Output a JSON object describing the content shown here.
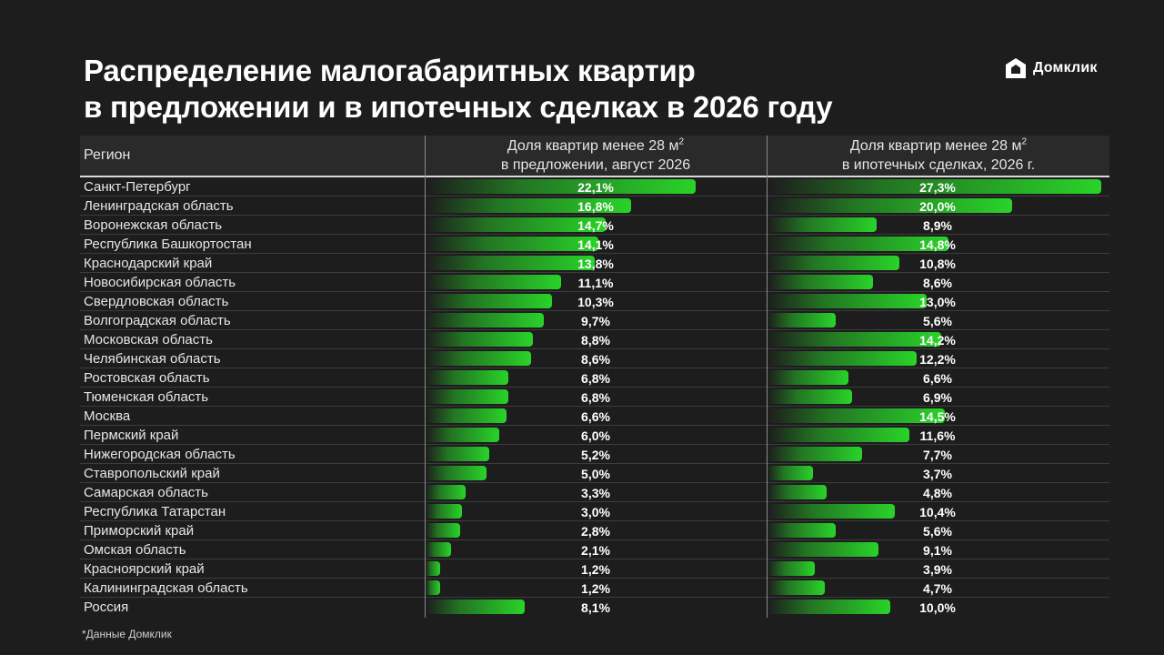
{
  "header": {
    "title_line1": "Распределение малогабаритных квартир",
    "title_line2": "в предложении и в ипотечных сделках в 2026 году"
  },
  "brand": {
    "name": "Домклик",
    "icon": "domclick-logo-icon",
    "accent": "#29d329"
  },
  "table": {
    "col_region": "Регион",
    "col1_line1": "Доля квартир менее 28 м",
    "col1_sup": "2",
    "col1_line2": "в предложении, август 2026",
    "col2_line1": "Доля квартир менее 28 м",
    "col2_sup": "2",
    "col2_line2": "в ипотечных сделках, 2026 г."
  },
  "chart_data": {
    "type": "bar",
    "categories": [
      "Санкт-Петербург",
      "Ленинградская область",
      "Воронежская область",
      "Республика Башкортостан",
      "Краснодарский край",
      "Новосибирская область",
      "Свердловская область",
      "Волгоградская область",
      "Московская область",
      "Челябинская область",
      "Ростовская область",
      "Тюменская область",
      "Москва",
      "Пермский край",
      "Нижегородская область",
      "Ставропольский край",
      "Самарская область",
      "Республика Татарстан",
      "Приморский край",
      "Омская область",
      "Красноярский край",
      "Калининградская область",
      "Россия"
    ],
    "series": [
      {
        "values": [
          22.1,
          16.8,
          14.7,
          14.1,
          13.8,
          11.1,
          10.3,
          9.7,
          8.8,
          8.6,
          6.8,
          6.8,
          6.6,
          6.0,
          5.2,
          5.0,
          3.3,
          3.0,
          2.8,
          2.1,
          1.2,
          1.2,
          8.1
        ],
        "labels": [
          "22,1%",
          "16,8%",
          "14,7%",
          "14,1%",
          "13,8%",
          "11,1%",
          "10,3%",
          "9,7%",
          "8,8%",
          "8,6%",
          "6,8%",
          "6,8%",
          "6,6%",
          "6,0%",
          "5,2%",
          "5,0%",
          "3,3%",
          "3,0%",
          "2,8%",
          "2,1%",
          "1,2%",
          "1,2%",
          "8,1%"
        ]
      },
      {
        "values": [
          27.3,
          20.0,
          8.9,
          14.8,
          10.8,
          8.6,
          13.0,
          5.6,
          14.2,
          12.2,
          6.6,
          6.9,
          14.5,
          11.6,
          7.7,
          3.7,
          4.8,
          10.4,
          5.6,
          9.1,
          3.9,
          4.7,
          10.0
        ],
        "labels": [
          "27,3%",
          "20,0%",
          "8,9%",
          "14,8%",
          "10,8%",
          "8,6%",
          "13,0%",
          "5,6%",
          "14,2%",
          "12,2%",
          "6,6%",
          "6,9%",
          "14,5%",
          "11,6%",
          "7,7%",
          "3,7%",
          "4,8%",
          "10,4%",
          "5,6%",
          "9,1%",
          "3,9%",
          "4,7%",
          "10,0%"
        ]
      }
    ],
    "bar_color": "#29d329"
  },
  "footnote": "*Данные Домклик"
}
